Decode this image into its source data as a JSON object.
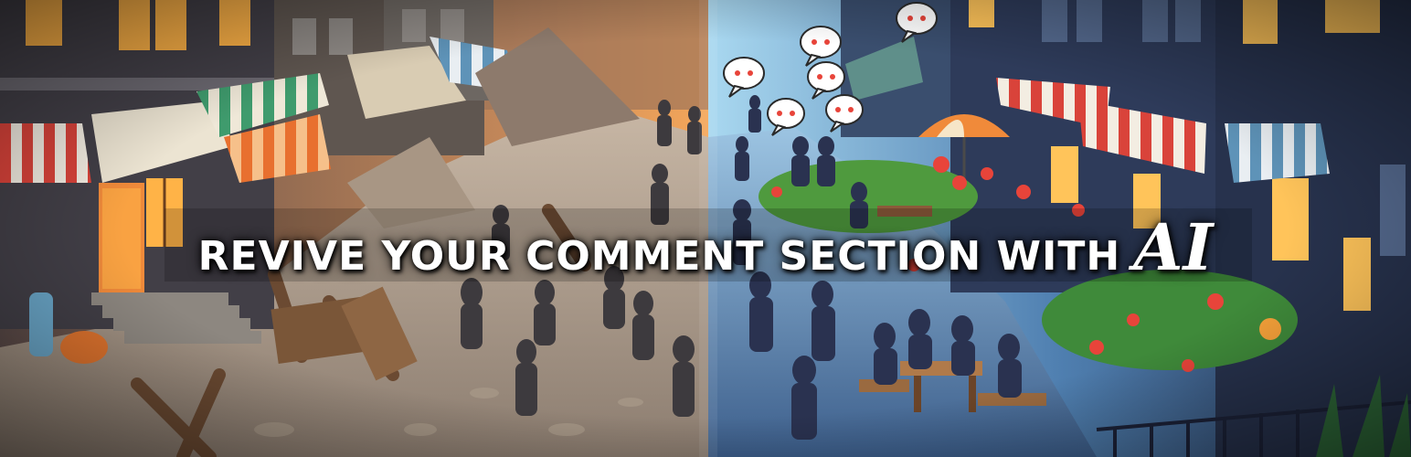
{
  "headline": {
    "main": "REVIVE YOUR COMMENT SECTION WITH",
    "accent": "AI"
  },
  "colors": {
    "left_sky": "#f0a24a",
    "left_street": "#b9a99a",
    "right_sky": "#6fb1d8",
    "right_street": "#5d7fa8",
    "building_dark": "#3b3c4a",
    "window_glow": "#ffb347",
    "awning_red": "#d9433a",
    "awning_green": "#3f9b6d",
    "flower_red": "#e8443a",
    "grass": "#4f9a3e"
  },
  "icons": [
    "speech-bubble-icon"
  ]
}
